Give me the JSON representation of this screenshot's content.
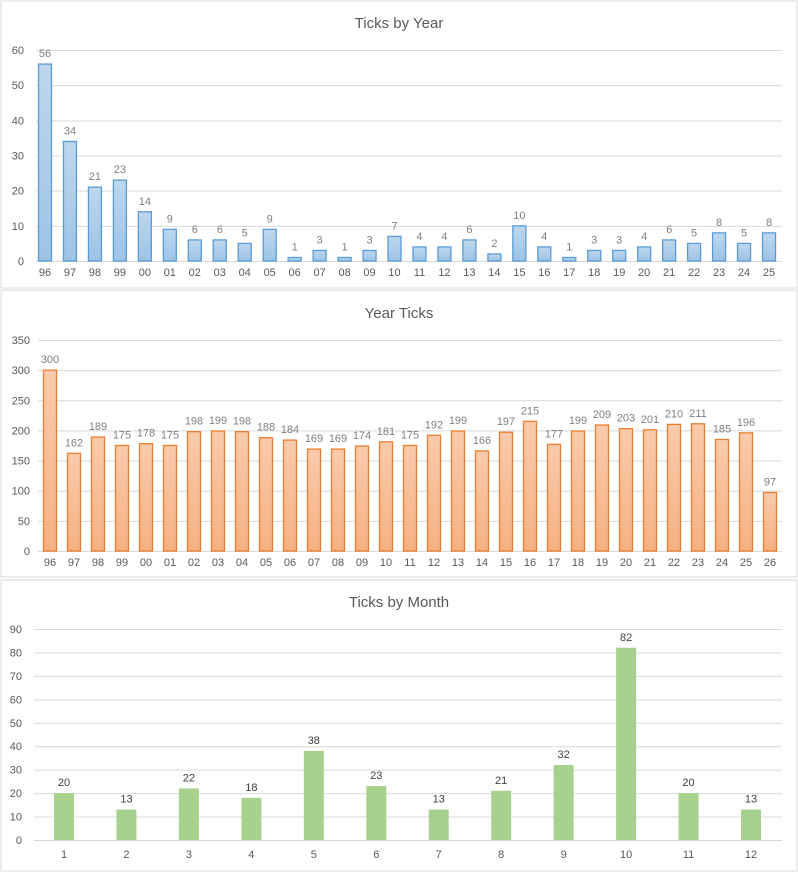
{
  "chart_data": [
    {
      "type": "bar",
      "title": "Ticks by Year",
      "xlabel": "",
      "ylabel": "",
      "ylim": [
        0,
        60
      ],
      "yticks": [
        0,
        10,
        20,
        30,
        40,
        50,
        60
      ],
      "grid": true,
      "color": "#5b9bd5",
      "fill_top": "#bdd7ee",
      "fill_bottom": "#9dc3e6",
      "categories": [
        "96",
        "97",
        "98",
        "99",
        "00",
        "01",
        "02",
        "03",
        "04",
        "05",
        "06",
        "07",
        "08",
        "09",
        "10",
        "11",
        "12",
        "13",
        "14",
        "15",
        "16",
        "17",
        "18",
        "19",
        "20",
        "21",
        "22",
        "23",
        "24",
        "25"
      ],
      "values": [
        56,
        34,
        21,
        23,
        14,
        9,
        6,
        6,
        5,
        9,
        1,
        3,
        1,
        3,
        7,
        4,
        4,
        6,
        2,
        10,
        4,
        1,
        3,
        3,
        4,
        6,
        5,
        8,
        5,
        8
      ]
    },
    {
      "type": "bar",
      "title": "Year Ticks",
      "xlabel": "",
      "ylabel": "",
      "ylim": [
        0,
        350
      ],
      "yticks": [
        0,
        50,
        100,
        150,
        200,
        250,
        300,
        350
      ],
      "grid": true,
      "color": "#ed7d31",
      "fill_top": "#f8cbad",
      "fill_bottom": "#f4b183",
      "categories": [
        "96",
        "97",
        "98",
        "99",
        "00",
        "01",
        "02",
        "03",
        "04",
        "05",
        "06",
        "07",
        "08",
        "09",
        "10",
        "11",
        "12",
        "13",
        "14",
        "15",
        "16",
        "17",
        "18",
        "19",
        "20",
        "21",
        "22",
        "23",
        "24",
        "25",
        "26"
      ],
      "values": [
        300,
        162,
        189,
        175,
        178,
        175,
        198,
        199,
        198,
        188,
        184,
        169,
        169,
        174,
        181,
        175,
        192,
        199,
        166,
        197,
        215,
        177,
        199,
        209,
        203,
        201,
        210,
        211,
        185,
        196,
        97
      ]
    },
    {
      "type": "bar",
      "title": "Ticks by Month",
      "xlabel": "",
      "ylabel": "",
      "ylim": [
        0,
        90
      ],
      "yticks": [
        0,
        10,
        20,
        30,
        40,
        50,
        60,
        70,
        80,
        90
      ],
      "grid": true,
      "color": "#a9d18e",
      "fill_top": "#a9d18e",
      "fill_bottom": "#a9d18e",
      "categories": [
        "1",
        "2",
        "3",
        "4",
        "5",
        "6",
        "7",
        "8",
        "9",
        "10",
        "11",
        "12"
      ],
      "values": [
        20,
        13,
        22,
        18,
        38,
        23,
        13,
        21,
        32,
        82,
        20,
        13
      ]
    }
  ]
}
